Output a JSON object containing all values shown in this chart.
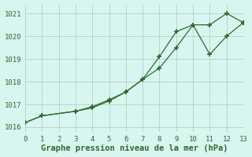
{
  "series1_x": [
    0,
    1,
    3,
    4,
    5,
    6,
    7,
    8,
    9,
    10,
    11,
    12,
    13
  ],
  "series1_y": [
    1016.2,
    1016.5,
    1016.7,
    1016.85,
    1017.15,
    1017.55,
    1018.1,
    1018.6,
    1019.5,
    1020.5,
    1020.5,
    1021.0,
    1020.6
  ],
  "series2_x": [
    0,
    1,
    3,
    4,
    5,
    6,
    7,
    8,
    9,
    10,
    11,
    12,
    13
  ],
  "series2_y": [
    1016.2,
    1016.5,
    1016.7,
    1016.9,
    1017.2,
    1017.55,
    1018.1,
    1019.1,
    1020.2,
    1020.5,
    1019.2,
    1020.0,
    1020.6
  ],
  "line_color": "#2d6a2d",
  "marker_color": "#2d6a2d",
  "bg_color": "#d8f5f0",
  "grid_color": "#b8d4cc",
  "title": "Graphe pression niveau de la mer (hPa)",
  "xlim": [
    0,
    13
  ],
  "ylim": [
    1015.8,
    1021.4
  ],
  "yticks": [
    1016,
    1017,
    1018,
    1019,
    1020,
    1021
  ],
  "xticks": [
    0,
    1,
    2,
    3,
    4,
    5,
    6,
    7,
    8,
    9,
    10,
    11,
    12,
    13
  ],
  "title_fontsize": 7.5,
  "tick_fontsize": 6.5
}
